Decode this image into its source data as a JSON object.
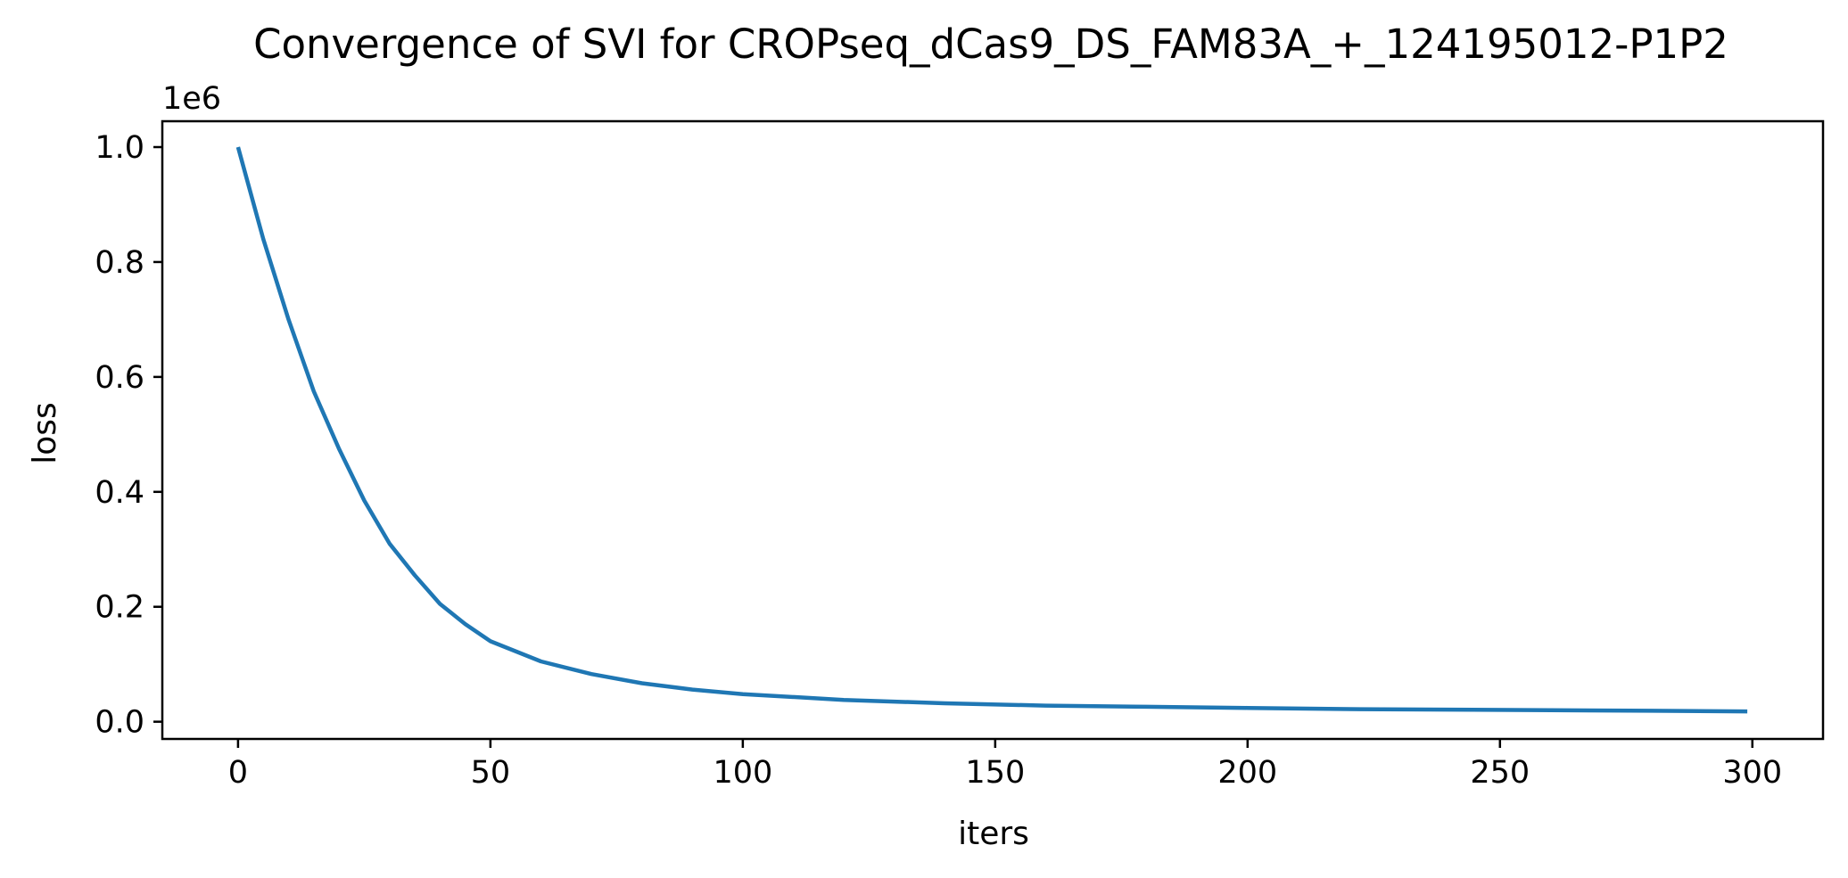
{
  "chart_data": {
    "type": "line",
    "title": "Convergence of SVI for CROPseq_dCas9_DS_FAM83A_+_124195012-P1P2",
    "xlabel": "iters",
    "ylabel": "loss",
    "y_offset_label": "1e6",
    "xlim": [
      -15,
      314
    ],
    "ylim": [
      -0.03,
      1.045
    ],
    "x_ticks": [
      0,
      50,
      100,
      150,
      200,
      250,
      300
    ],
    "x_tick_labels": [
      "0",
      "50",
      "100",
      "150",
      "200",
      "250",
      "300"
    ],
    "y_ticks": [
      0.0,
      0.2,
      0.4,
      0.6,
      0.8,
      1.0
    ],
    "y_tick_labels": [
      "0.0",
      "0.2",
      "0.4",
      "0.6",
      "0.8",
      "1.0"
    ],
    "grid": false,
    "series": [
      {
        "color": "#1f77b4",
        "x": [
          0,
          5,
          10,
          15,
          20,
          25,
          30,
          35,
          40,
          45,
          50,
          60,
          70,
          80,
          90,
          100,
          120,
          140,
          160,
          180,
          200,
          220,
          240,
          260,
          280,
          299
        ],
        "y": [
          1.0,
          0.84,
          0.7,
          0.575,
          0.475,
          0.385,
          0.31,
          0.255,
          0.205,
          0.17,
          0.14,
          0.105,
          0.083,
          0.067,
          0.056,
          0.048,
          0.038,
          0.032,
          0.028,
          0.026,
          0.024,
          0.022,
          0.021,
          0.02,
          0.019,
          0.018
        ]
      }
    ]
  }
}
